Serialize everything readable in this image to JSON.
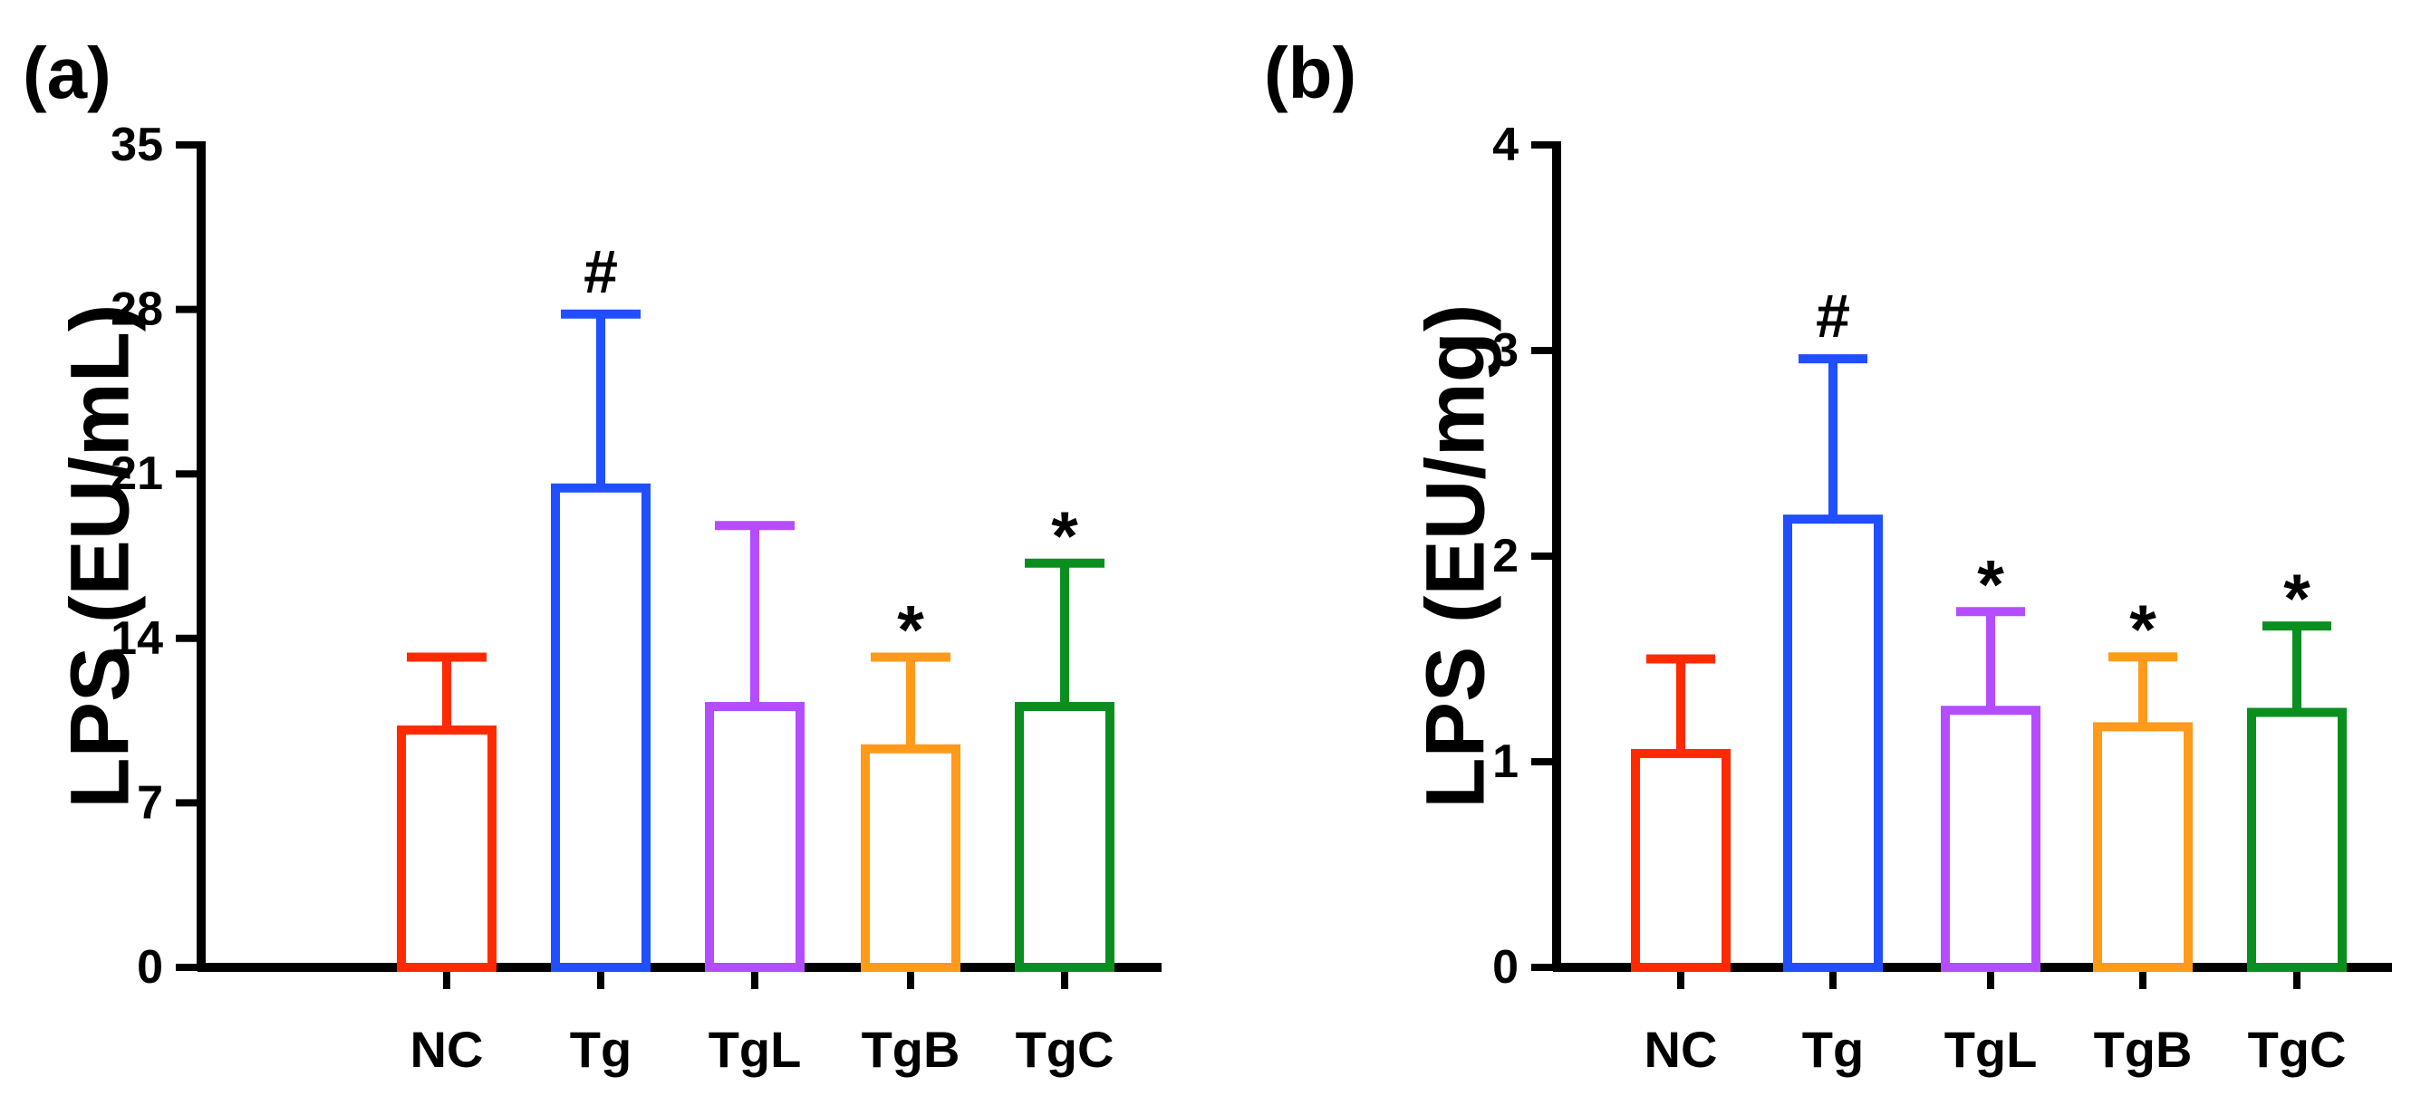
{
  "chart_data": [
    {
      "type": "bar",
      "panel_label": "(a)",
      "ylabel": "LPS (EU/mL)",
      "xlabel": "",
      "ylim": [
        0,
        35
      ],
      "yticks": [
        0,
        7,
        14,
        21,
        28,
        35
      ],
      "categories": [
        "NC",
        "Tg",
        "TgL",
        "TgB",
        "TgC"
      ],
      "values": [
        10.1,
        20.4,
        11.1,
        9.3,
        11.1
      ],
      "error": [
        3.1,
        7.4,
        7.7,
        3.9,
        6.1
      ],
      "annotations": [
        "",
        "#",
        "",
        "*",
        "*"
      ],
      "colors": [
        "#ff2a00",
        "#1f4fff",
        "#b34dff",
        "#ff9a1a",
        "#0a8f1f"
      ]
    },
    {
      "type": "bar",
      "panel_label": "(b)",
      "ylabel": "LPS (EU/mg)",
      "xlabel": "",
      "ylim": [
        0,
        4
      ],
      "yticks": [
        0,
        1,
        2,
        3,
        4
      ],
      "categories": [
        "NC",
        "Tg",
        "TgL",
        "TgB",
        "TgC"
      ],
      "values": [
        1.04,
        2.18,
        1.25,
        1.17,
        1.24
      ],
      "error": [
        0.46,
        0.78,
        0.48,
        0.34,
        0.42
      ],
      "annotations": [
        "",
        "#",
        "*",
        "*",
        "*"
      ],
      "colors": [
        "#ff2a00",
        "#1f4fff",
        "#b34dff",
        "#ff9a1a",
        "#0a8f1f"
      ]
    }
  ]
}
